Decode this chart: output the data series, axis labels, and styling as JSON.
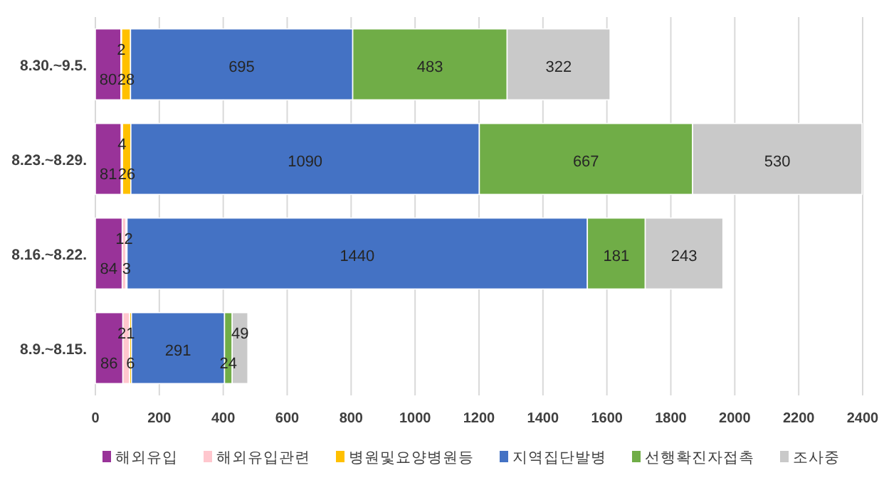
{
  "chart_data": {
    "type": "bar",
    "orientation": "horizontal",
    "stacked": true,
    "data_labels": true,
    "grid": "x",
    "legend": "bottom",
    "categories": [
      "8.30.~9.5.",
      "8.23.~8.29.",
      "8.16.~8.22.",
      "8.9.~8.15."
    ],
    "xlim": [
      0,
      2400
    ],
    "xticks": [
      0,
      200,
      400,
      600,
      800,
      1000,
      1200,
      1400,
      1600,
      1800,
      2000,
      2200,
      2400
    ],
    "series": [
      {
        "name": "해외유입",
        "color": "#993399",
        "values": [
          80,
          81,
          84,
          86
        ]
      },
      {
        "name": "해외유입관련",
        "color": "#ffc7ce",
        "values": [
          2,
          4,
          12,
          21
        ]
      },
      {
        "name": "병원및요양병원등",
        "color": "#ffc000",
        "values": [
          28,
          26,
          3,
          6
        ]
      },
      {
        "name": "지역집단발병",
        "color": "#4472c4",
        "values": [
          695,
          1090,
          1440,
          291
        ]
      },
      {
        "name": "선행확진자접촉",
        "color": "#70ad47",
        "values": [
          483,
          667,
          181,
          24
        ]
      },
      {
        "name": "조사중",
        "color": "#c9c9c9",
        "values": [
          322,
          530,
          243,
          49
        ]
      }
    ]
  }
}
